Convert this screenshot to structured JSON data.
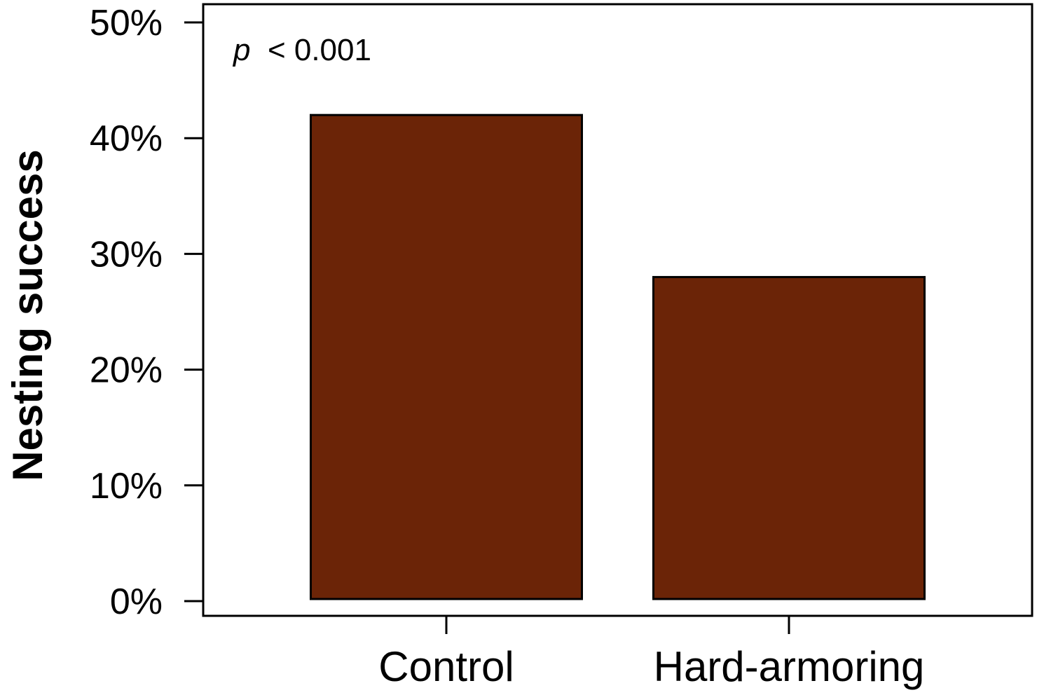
{
  "chart_data": {
    "type": "bar",
    "categories": [
      "Control",
      "Hard-armoring"
    ],
    "values": [
      42,
      28
    ],
    "ylabel": "Nesting success",
    "xlabel": "",
    "ylim": [
      0,
      50
    ],
    "yticks": [
      0,
      10,
      20,
      30,
      40,
      50
    ],
    "ytick_labels": [
      "0%",
      "10%",
      "20%",
      "30%",
      "40%",
      "50%"
    ],
    "annotation": {
      "symbol": "p",
      "text": " < 0.001"
    },
    "grid": false,
    "legend": "none",
    "bar_color": "#6b2407",
    "edge_color": "#000000"
  }
}
